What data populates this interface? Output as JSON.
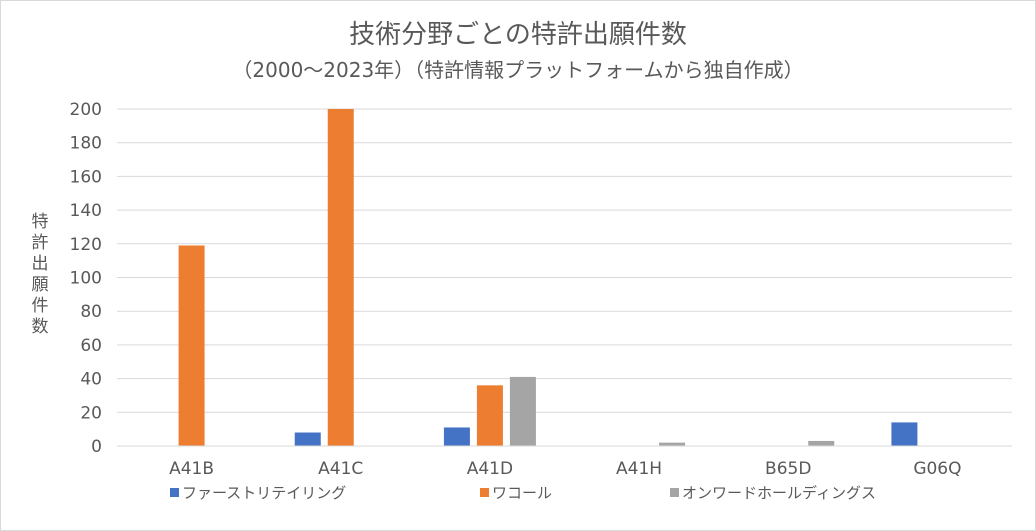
{
  "colors": {
    "ファーストリテイリング": "#4472c4",
    "ワコール": "#ed7d31",
    "オンワードホールディングス": "#a5a5a5"
  },
  "chart_data": {
    "type": "bar",
    "title": "技術分野ごとの特許出願件数",
    "subtitle": "（2000～2023年）（特許情報プラットフォームから独自作成）",
    "xlabel": "",
    "ylabel": "特許出願件数",
    "categories": [
      "A41B",
      "A41C",
      "A41D",
      "A41H",
      "B65D",
      "G06Q"
    ],
    "series": [
      {
        "name": "ファーストリテイリング",
        "values": [
          0,
          8,
          11,
          0,
          0,
          14
        ]
      },
      {
        "name": "ワコール",
        "values": [
          119,
          200,
          36,
          0,
          0,
          0
        ]
      },
      {
        "name": "オンワードホールディングス",
        "values": [
          0,
          0,
          41,
          2,
          3,
          0
        ]
      }
    ],
    "ylim": [
      0,
      200
    ],
    "yticks": [
      0,
      20,
      40,
      60,
      80,
      100,
      120,
      140,
      160,
      180,
      200
    ],
    "grid": true,
    "legend": "bottom"
  }
}
